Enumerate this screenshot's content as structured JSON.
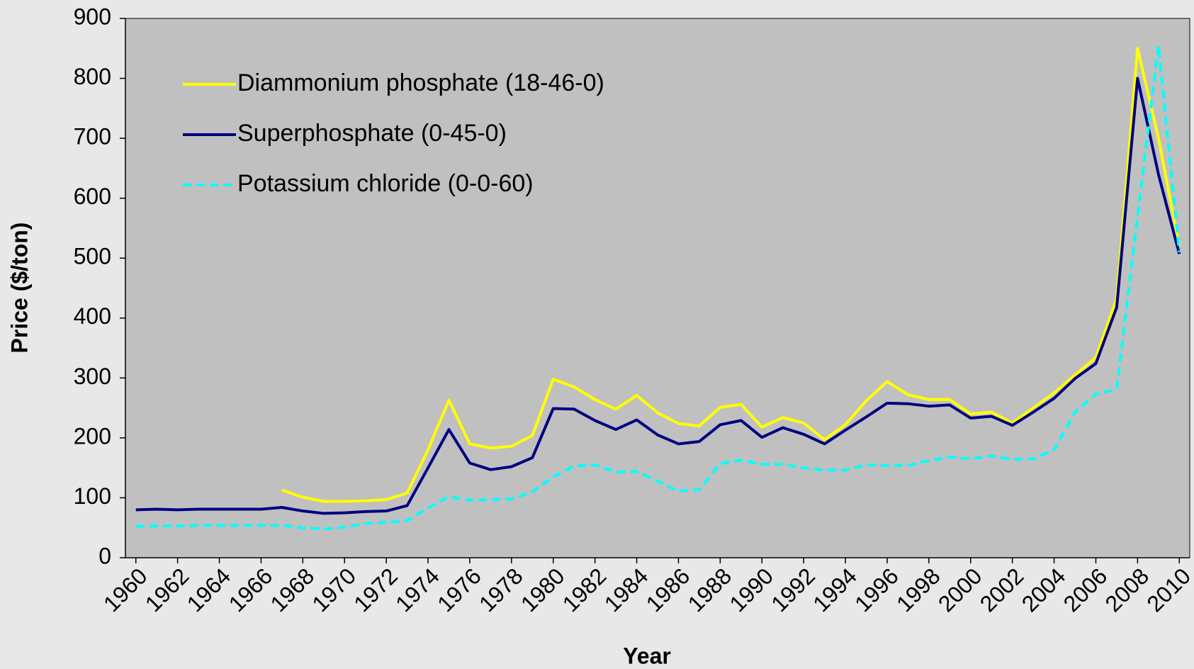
{
  "chart_data": {
    "type": "line",
    "x_label": "Year",
    "y_label": "Price ($/ton)",
    "x": [
      1960,
      1961,
      1962,
      1963,
      1964,
      1965,
      1966,
      1967,
      1968,
      1969,
      1970,
      1971,
      1972,
      1973,
      1974,
      1975,
      1976,
      1977,
      1978,
      1979,
      1980,
      1981,
      1982,
      1983,
      1984,
      1985,
      1986,
      1987,
      1988,
      1989,
      1990,
      1991,
      1992,
      1993,
      1994,
      1995,
      1996,
      1997,
      1998,
      1999,
      2000,
      2001,
      2002,
      2003,
      2004,
      2005,
      2006,
      2007,
      2008,
      2009,
      2010
    ],
    "series": [
      {
        "name": "Diammonium phosphate (18-46-0)",
        "color": "#ffff00",
        "dashed": false,
        "values": [
          null,
          null,
          null,
          null,
          null,
          null,
          null,
          113,
          101,
          94,
          94,
          95,
          97,
          108,
          180,
          263,
          190,
          183,
          186,
          204,
          298,
          285,
          264,
          248,
          271,
          242,
          224,
          220,
          251,
          256,
          218,
          234,
          225,
          197,
          222,
          262,
          294,
          272,
          264,
          264,
          240,
          243,
          225,
          250,
          275,
          305,
          334,
          433,
          850,
          700,
          520
        ]
      },
      {
        "name": "Superphosphate (0-45-0)",
        "color": "#000080",
        "dashed": false,
        "values": [
          80,
          81,
          80,
          81,
          81,
          81,
          81,
          84,
          78,
          74,
          75,
          77,
          78,
          87,
          150,
          214,
          158,
          147,
          152,
          167,
          249,
          248,
          229,
          214,
          230,
          205,
          190,
          194,
          222,
          229,
          201,
          217,
          206,
          190,
          213,
          235,
          258,
          257,
          253,
          255,
          233,
          236,
          221,
          243,
          266,
          299,
          324,
          418,
          800,
          640,
          507
        ]
      },
      {
        "name": "Potassium chloride (0-0-60)",
        "color": "#00ffff",
        "dashed": true,
        "values": [
          52,
          53,
          53,
          54,
          54,
          54,
          54,
          54,
          50,
          48,
          51,
          57,
          59,
          62,
          83,
          102,
          96,
          97,
          98,
          110,
          135,
          153,
          155,
          143,
          144,
          128,
          111,
          114,
          157,
          163,
          156,
          156,
          150,
          146,
          146,
          155,
          154,
          154,
          162,
          168,
          165,
          170,
          164,
          165,
          180,
          243,
          273,
          281,
          570,
          855,
          510
        ]
      }
    ],
    "xlim": [
      1959.5,
      2010.5
    ],
    "xticks": [
      1960,
      1962,
      1964,
      1966,
      1968,
      1970,
      1972,
      1974,
      1976,
      1978,
      1980,
      1982,
      1984,
      1986,
      1988,
      1990,
      1992,
      1994,
      1996,
      1998,
      2000,
      2002,
      2004,
      2006,
      2008,
      2010
    ],
    "ylim": [
      0,
      900
    ],
    "yticks": [
      0,
      100,
      200,
      300,
      400,
      500,
      600,
      700,
      800,
      900
    ],
    "grid": false,
    "legend": "upper left"
  }
}
